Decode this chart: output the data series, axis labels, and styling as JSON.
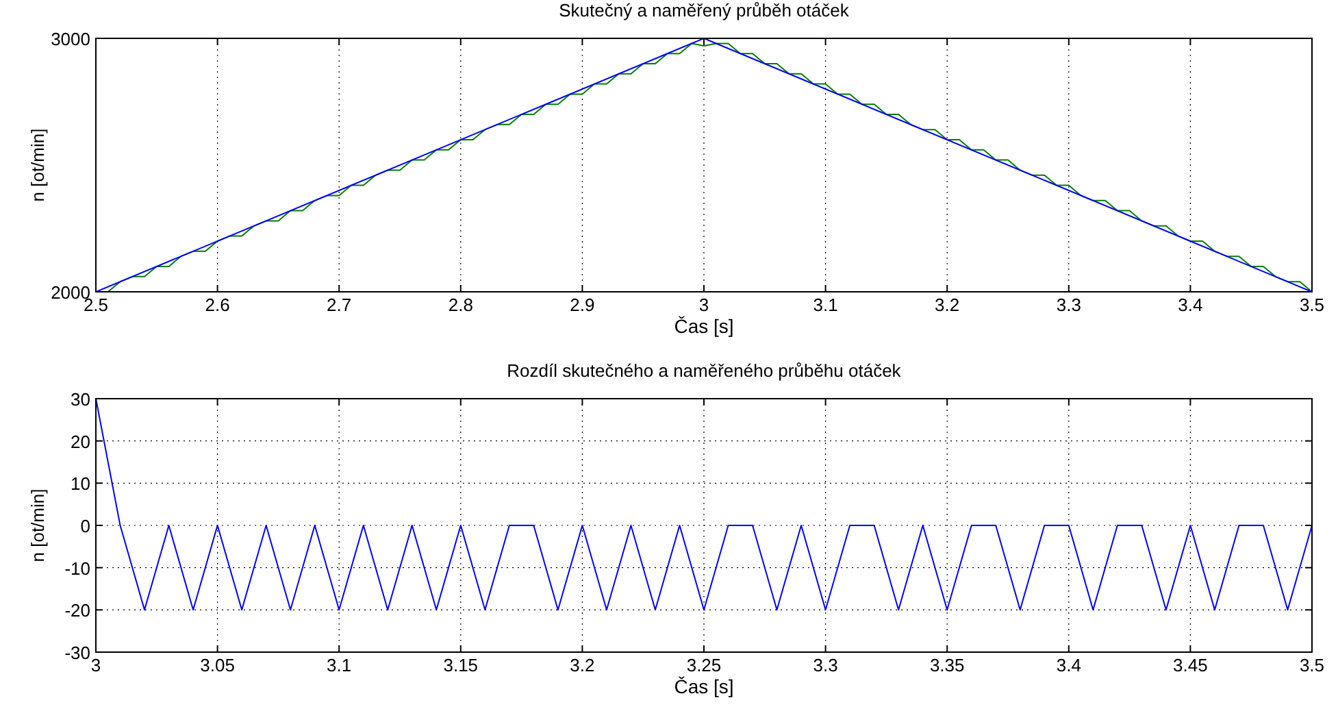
{
  "chart_data": [
    {
      "type": "line",
      "title": "Skutečný a naměřený průběh otáček",
      "xlabel": "Čas [s]",
      "ylabel": "n [ot/min]",
      "xlim": [
        2.5,
        3.5
      ],
      "ylim": [
        2000,
        3000
      ],
      "xticks": [
        2.5,
        2.6,
        2.7,
        2.8,
        2.9,
        3,
        3.1,
        3.2,
        3.3,
        3.4,
        3.5
      ],
      "yticks": [
        2000,
        3000
      ],
      "grid": "x",
      "series": [
        {
          "color": "#008000",
          "x": [
            2.5,
            2.51,
            2.52,
            2.53,
            2.54,
            2.55,
            2.56,
            2.57,
            2.58,
            2.59,
            2.6,
            2.61,
            2.62,
            2.63,
            2.64,
            2.65,
            2.66,
            2.67,
            2.68,
            2.69,
            2.7,
            2.71,
            2.72,
            2.73,
            2.74,
            2.75,
            2.76,
            2.77,
            2.78,
            2.79,
            2.8,
            2.81,
            2.82,
            2.83,
            2.84,
            2.85,
            2.86,
            2.87,
            2.88,
            2.89,
            2.9,
            2.91,
            2.92,
            2.93,
            2.94,
            2.95,
            2.96,
            2.97,
            2.98,
            2.99,
            3,
            3.01,
            3.02,
            3.03,
            3.04,
            3.05,
            3.06,
            3.07,
            3.08,
            3.09,
            3.1,
            3.11,
            3.12,
            3.13,
            3.14,
            3.15,
            3.16,
            3.17,
            3.18,
            3.19,
            3.2,
            3.21,
            3.22,
            3.23,
            3.24,
            3.25,
            3.26,
            3.27,
            3.28,
            3.29,
            3.3,
            3.31,
            3.32,
            3.33,
            3.34,
            3.35,
            3.36,
            3.37,
            3.38,
            3.39,
            3.4,
            3.41,
            3.42,
            3.43,
            3.44,
            3.45,
            3.46,
            3.47,
            3.48,
            3.49,
            3.5
          ],
          "values": [
            2000,
            2000,
            2040,
            2060,
            2060,
            2100,
            2100,
            2140,
            2160,
            2160,
            2200,
            2220,
            2220,
            2260,
            2280,
            2280,
            2320,
            2320,
            2360,
            2380,
            2380,
            2420,
            2420,
            2460,
            2480,
            2480,
            2520,
            2520,
            2560,
            2560,
            2600,
            2600,
            2640,
            2660,
            2660,
            2700,
            2700,
            2740,
            2740,
            2780,
            2780,
            2820,
            2820,
            2860,
            2860,
            2900,
            2900,
            2940,
            2940,
            2980,
            2970,
            2980,
            2980,
            2940,
            2940,
            2900,
            2900,
            2860,
            2860,
            2820,
            2820,
            2780,
            2780,
            2740,
            2740,
            2700,
            2700,
            2660,
            2640,
            2640,
            2600,
            2600,
            2560,
            2560,
            2520,
            2520,
            2480,
            2460,
            2460,
            2420,
            2420,
            2380,
            2360,
            2360,
            2320,
            2320,
            2280,
            2260,
            2260,
            2220,
            2200,
            2200,
            2160,
            2140,
            2140,
            2100,
            2100,
            2060,
            2040,
            2040,
            2000
          ]
        },
        {
          "color": "#0000ff",
          "x": [
            2.5,
            3,
            3.5
          ],
          "values": [
            2000,
            3000,
            2000
          ]
        }
      ]
    },
    {
      "type": "line",
      "title": "Rozdíl skutečného a naměřeného průběhu otáček",
      "xlabel": "Čas [s]",
      "ylabel": "n [ot/min]",
      "xlim": [
        3,
        3.5
      ],
      "ylim": [
        -30,
        30
      ],
      "xticks": [
        3,
        3.05,
        3.1,
        3.15,
        3.2,
        3.25,
        3.3,
        3.35,
        3.4,
        3.45,
        3.5
      ],
      "yticks": [
        -30,
        -20,
        -10,
        0,
        10,
        20,
        30
      ],
      "grid": true,
      "series": [
        {
          "color": "#0000ff",
          "x": [
            3,
            3.01,
            3.02,
            3.03,
            3.04,
            3.05,
            3.06,
            3.07,
            3.08,
            3.09,
            3.1,
            3.11,
            3.12,
            3.13,
            3.14,
            3.15,
            3.16,
            3.17,
            3.18,
            3.19,
            3.2,
            3.21,
            3.22,
            3.23,
            3.24,
            3.25,
            3.26,
            3.27,
            3.28,
            3.29,
            3.3,
            3.31,
            3.32,
            3.33,
            3.34,
            3.35,
            3.36,
            3.37,
            3.38,
            3.39,
            3.4,
            3.41,
            3.42,
            3.43,
            3.44,
            3.45,
            3.46,
            3.47,
            3.48,
            3.49,
            3.5
          ],
          "values": [
            30,
            0,
            -20,
            0,
            -20,
            0,
            -20,
            0,
            -20,
            0,
            -20,
            0,
            -20,
            0,
            -20,
            0,
            -20,
            0,
            0,
            -20,
            0,
            -20,
            0,
            -20,
            0,
            -20,
            0,
            0,
            -20,
            0,
            -20,
            0,
            0,
            -20,
            0,
            -20,
            0,
            0,
            -20,
            0,
            0,
            -20,
            0,
            0,
            -20,
            0,
            -20,
            0,
            0,
            -20,
            0
          ]
        }
      ]
    }
  ]
}
